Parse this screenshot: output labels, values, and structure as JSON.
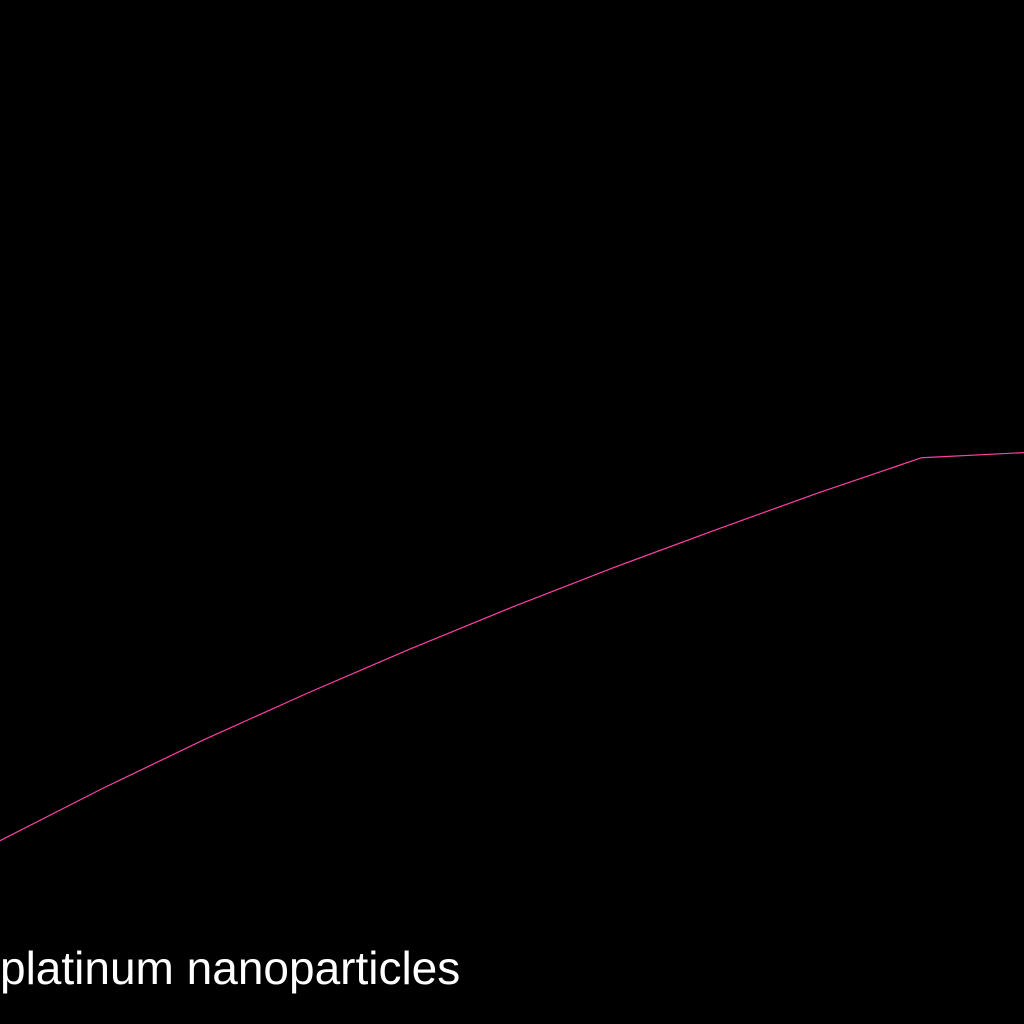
{
  "chart_data": {
    "type": "line",
    "title": "",
    "xlabel": "",
    "ylabel": "",
    "grid": false,
    "legend_placement": "bottom-left",
    "xlim": [
      0,
      1
    ],
    "ylim": [
      0,
      1
    ],
    "series": [
      {
        "name": "platinum nanoparticles",
        "color": "#ff3fa6",
        "x": [
          0,
          0.1,
          0.2,
          0.3,
          0.4,
          0.5,
          0.6,
          0.7,
          0.8,
          0.9,
          1.0
        ],
        "y": [
          0.179,
          0.23,
          0.278,
          0.323,
          0.366,
          0.407,
          0.446,
          0.483,
          0.519,
          0.553,
          0.558
        ]
      }
    ]
  },
  "colors": {
    "background": "#000000",
    "text": "#ffffff"
  }
}
